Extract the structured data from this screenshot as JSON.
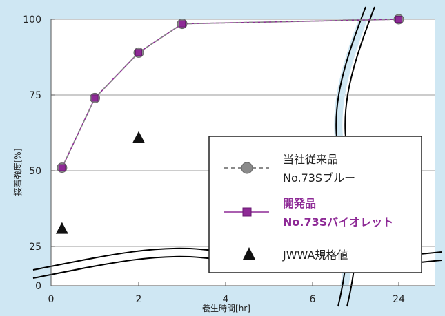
{
  "chart_data": {
    "type": "line",
    "xlabel": "養生時間[hr]",
    "ylabel": "接着強度[%]",
    "x_ticks": [
      "0",
      "2",
      "4",
      "6",
      "24"
    ],
    "y_ticks": [
      "0",
      "25",
      "50",
      "75",
      "100"
    ],
    "ylim": [
      0,
      100
    ],
    "grid": "horizontal",
    "axis_breaks": [
      "x between 6 and 24",
      "y between 0 and 25"
    ],
    "series": [
      {
        "name": "当社従来品",
        "name_line2": "No.73Sブルー",
        "style": "dashed-circle",
        "color": "#8a8a8a",
        "points": [
          [
            0.25,
            51
          ],
          [
            1,
            74
          ],
          [
            2,
            89
          ],
          [
            3,
            98.5
          ],
          [
            24,
            100
          ]
        ]
      },
      {
        "name": "開発品",
        "name_line2": "No.73Sバイオレット",
        "style": "solid-square",
        "color": "#8e2a96",
        "points": [
          [
            0.25,
            51
          ],
          [
            1,
            74
          ],
          [
            2,
            89
          ],
          [
            3,
            98.5
          ],
          [
            24,
            100
          ]
        ]
      },
      {
        "name": "JWWA規格値",
        "style": "triangle",
        "color": "#111111",
        "points": [
          [
            0.25,
            31
          ],
          [
            2,
            61
          ]
        ]
      }
    ],
    "legend_position": "right"
  }
}
